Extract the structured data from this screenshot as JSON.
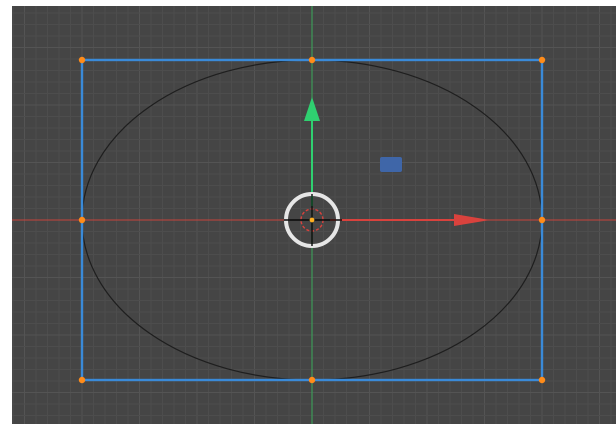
{
  "viewport": {
    "background_color": "#454545",
    "grid_minor_color": "#4d4d4d",
    "grid_major_color": "#545454"
  },
  "axes": {
    "x_axis_color": "#c8423c",
    "y_axis_color": "#3d9a58"
  },
  "selection": {
    "outline_color": "#3a8ad8",
    "handle_color": "#ff8c1a",
    "shape": "ellipse",
    "shape_outline_color": "#1e1e1e"
  },
  "gizmo": {
    "move_x_color": "#d9423d",
    "move_y_color": "#2fd070",
    "plane_handle_color": "#3f66a8",
    "rotation_ring_color": "#e6e6e6",
    "pivot_ring_color": "#d9423d",
    "center_dot_color": "#ffb020",
    "crosshair_color": "#0a0a0a"
  },
  "icons": [
    "move-x-arrow-icon",
    "move-y-arrow-icon",
    "plane-move-handle-icon",
    "pivot-crosshair-icon"
  ]
}
